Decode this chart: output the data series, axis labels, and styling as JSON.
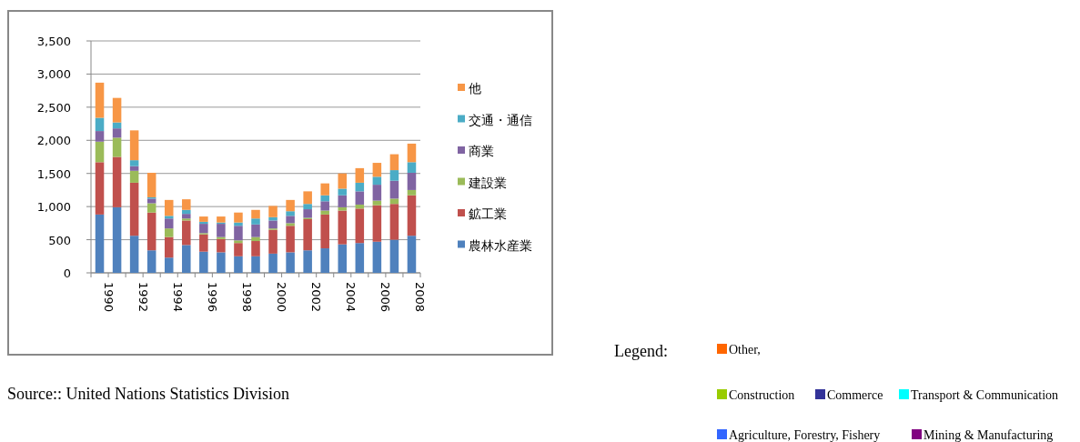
{
  "chart_data": {
    "type": "bar",
    "stacked": true,
    "categories": [
      "1990",
      null,
      "1992",
      null,
      "1994",
      null,
      "1996",
      null,
      "1998",
      null,
      "2000",
      null,
      "2002",
      null,
      "2004",
      null,
      "2006",
      null,
      "2008"
    ],
    "series": [
      {
        "name": "農林水産業",
        "color": "#4f81bd",
        "values": [
          880,
          990,
          560,
          340,
          230,
          420,
          320,
          310,
          250,
          250,
          290,
          310,
          340,
          370,
          430,
          450,
          470,
          500,
          560
        ]
      },
      {
        "name": "鉱工業",
        "color": "#c0504d",
        "values": [
          790,
          760,
          800,
          570,
          310,
          370,
          260,
          200,
          200,
          230,
          360,
          400,
          470,
          510,
          510,
          520,
          550,
          540,
          610
        ]
      },
      {
        "name": "建設業",
        "color": "#9bbb59",
        "values": [
          310,
          290,
          180,
          140,
          130,
          30,
          20,
          30,
          40,
          60,
          20,
          40,
          20,
          60,
          50,
          60,
          70,
          80,
          80
        ]
      },
      {
        "name": "商業",
        "color": "#8064a2",
        "values": [
          160,
          140,
          70,
          70,
          150,
          70,
          140,
          200,
          220,
          190,
          120,
          110,
          130,
          140,
          180,
          200,
          240,
          270,
          260
        ]
      },
      {
        "name": "交通・通信",
        "color": "#4bacc6",
        "values": [
          200,
          90,
          90,
          20,
          40,
          60,
          30,
          20,
          50,
          90,
          50,
          70,
          80,
          90,
          100,
          130,
          120,
          160,
          160
        ]
      },
      {
        "name": "他",
        "color": "#f79646",
        "values": [
          530,
          370,
          450,
          370,
          240,
          160,
          80,
          90,
          150,
          130,
          170,
          170,
          190,
          180,
          230,
          220,
          210,
          240,
          280
        ]
      }
    ],
    "ylim": [
      0,
      3500
    ],
    "yticks": [
      0,
      500,
      {
        "value": 1000,
        "label": "1,000"
      },
      {
        "value": 1500,
        "label": "1,500"
      },
      {
        "value": 2000,
        "label": "2,000"
      },
      {
        "value": 2500,
        "label": "2,500"
      },
      {
        "value": 3000,
        "label": "3,000"
      },
      {
        "value": 3500,
        "label": "3,500"
      }
    ],
    "grid": "y",
    "legend": "right",
    "annotations": [
      "Source:: United Nations Statistics Division",
      "Legend:",
      "Other,",
      "Construction",
      "Commerce",
      "Transport & Communication",
      "Agriculture, Forestry, Fishery",
      "Mining & Manufacturing"
    ]
  }
}
